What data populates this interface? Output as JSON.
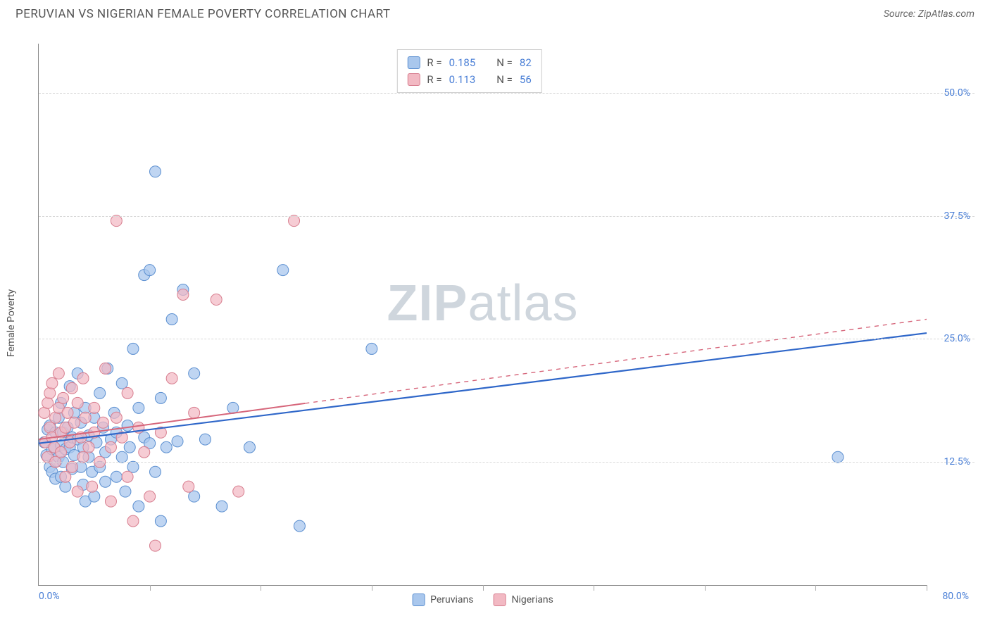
{
  "header": {
    "title": "PERUVIAN VS NIGERIAN FEMALE POVERTY CORRELATION CHART",
    "source": "Source: ZipAtlas.com"
  },
  "axes": {
    "ylabel": "Female Poverty",
    "x_origin_label": "0.0%",
    "x_max_label": "80.0%",
    "xlim": [
      0,
      80
    ],
    "ylim": [
      0,
      55
    ],
    "y_gridlines": [
      {
        "value": 12.5,
        "label": "12.5%"
      },
      {
        "value": 25.0,
        "label": "25.0%"
      },
      {
        "value": 37.5,
        "label": "37.5%"
      },
      {
        "value": 50.0,
        "label": "50.0%"
      }
    ],
    "x_ticks": [
      10,
      20,
      30,
      40,
      50,
      60,
      70,
      80
    ],
    "grid_color": "#d8d8d8",
    "axis_color": "#888888",
    "tick_label_color": "#4a7fd6"
  },
  "watermark": {
    "text_bold": "ZIP",
    "text_light": "atlas",
    "color": "#cfd6dd"
  },
  "series": [
    {
      "name": "Peruvians",
      "fill_color": "#a9c7ed",
      "stroke_color": "#5b8fd0",
      "marker_radius": 8,
      "marker_opacity": 0.75,
      "trend": {
        "x0": 0,
        "y0": 14.4,
        "x1": 80,
        "y1": 25.6,
        "color": "#2f67c9",
        "width": 2.2,
        "solid_until_x": 80
      },
      "R": 0.185,
      "N": 82,
      "points": [
        [
          0.5,
          14.5
        ],
        [
          0.7,
          13.2
        ],
        [
          0.8,
          15.8
        ],
        [
          1.0,
          12.0
        ],
        [
          1.0,
          16.2
        ],
        [
          1.2,
          13.8
        ],
        [
          1.2,
          11.5
        ],
        [
          1.4,
          14.0
        ],
        [
          1.5,
          10.8
        ],
        [
          1.5,
          15.5
        ],
        [
          1.6,
          12.6
        ],
        [
          1.8,
          13.0
        ],
        [
          1.8,
          17.0
        ],
        [
          2.0,
          14.2
        ],
        [
          2.0,
          11.0
        ],
        [
          2.0,
          18.5
        ],
        [
          2.2,
          15.5
        ],
        [
          2.2,
          12.5
        ],
        [
          2.4,
          10.0
        ],
        [
          2.4,
          13.8
        ],
        [
          2.6,
          16.0
        ],
        [
          2.8,
          14.0
        ],
        [
          2.8,
          20.2
        ],
        [
          3.0,
          11.8
        ],
        [
          3.0,
          15.0
        ],
        [
          3.2,
          17.5
        ],
        [
          3.2,
          13.2
        ],
        [
          3.5,
          14.8
        ],
        [
          3.5,
          21.5
        ],
        [
          3.8,
          12.0
        ],
        [
          3.8,
          16.5
        ],
        [
          4.0,
          14.0
        ],
        [
          4.0,
          10.2
        ],
        [
          4.2,
          18.0
        ],
        [
          4.2,
          8.5
        ],
        [
          4.5,
          15.2
        ],
        [
          4.5,
          13.0
        ],
        [
          4.8,
          11.5
        ],
        [
          5.0,
          17.0
        ],
        [
          5.0,
          9.0
        ],
        [
          5.2,
          14.5
        ],
        [
          5.5,
          19.5
        ],
        [
          5.5,
          12.0
        ],
        [
          5.8,
          16.0
        ],
        [
          6.0,
          13.5
        ],
        [
          6.0,
          10.5
        ],
        [
          6.2,
          22.0
        ],
        [
          6.5,
          14.8
        ],
        [
          6.8,
          17.5
        ],
        [
          7.0,
          15.5
        ],
        [
          7.0,
          11.0
        ],
        [
          7.5,
          13.0
        ],
        [
          7.5,
          20.5
        ],
        [
          7.8,
          9.5
        ],
        [
          8.0,
          16.2
        ],
        [
          8.2,
          14.0
        ],
        [
          8.5,
          24.0
        ],
        [
          8.5,
          12.0
        ],
        [
          9.0,
          18.0
        ],
        [
          9.0,
          8.0
        ],
        [
          9.5,
          15.0
        ],
        [
          9.5,
          31.5
        ],
        [
          10.0,
          14.4
        ],
        [
          10.0,
          32.0
        ],
        [
          10.5,
          42.0
        ],
        [
          10.5,
          11.5
        ],
        [
          11.0,
          19.0
        ],
        [
          11.0,
          6.5
        ],
        [
          11.5,
          14.0
        ],
        [
          12.0,
          27.0
        ],
        [
          12.5,
          14.6
        ],
        [
          13.0,
          30.0
        ],
        [
          14.0,
          21.5
        ],
        [
          14.0,
          9.0
        ],
        [
          15.0,
          14.8
        ],
        [
          16.5,
          8.0
        ],
        [
          17.5,
          18.0
        ],
        [
          19.0,
          14.0
        ],
        [
          22.0,
          32.0
        ],
        [
          23.5,
          6.0
        ],
        [
          30.0,
          24.0
        ],
        [
          72.0,
          13.0
        ]
      ]
    },
    {
      "name": "Nigerians",
      "fill_color": "#f2b9c3",
      "stroke_color": "#d77d8e",
      "marker_radius": 8,
      "marker_opacity": 0.72,
      "trend": {
        "x0": 0,
        "y0": 14.8,
        "x1": 80,
        "y1": 27.0,
        "color": "#d6657a",
        "width": 2.0,
        "solid_until_x": 24
      },
      "R": 0.113,
      "N": 56,
      "points": [
        [
          0.5,
          17.5
        ],
        [
          0.6,
          14.5
        ],
        [
          0.8,
          18.5
        ],
        [
          0.8,
          13.0
        ],
        [
          1.0,
          16.0
        ],
        [
          1.0,
          19.5
        ],
        [
          1.2,
          15.0
        ],
        [
          1.2,
          20.5
        ],
        [
          1.4,
          14.0
        ],
        [
          1.5,
          17.0
        ],
        [
          1.5,
          12.5
        ],
        [
          1.8,
          18.0
        ],
        [
          1.8,
          21.5
        ],
        [
          2.0,
          15.5
        ],
        [
          2.0,
          13.5
        ],
        [
          2.2,
          19.0
        ],
        [
          2.4,
          16.0
        ],
        [
          2.4,
          11.0
        ],
        [
          2.6,
          17.5
        ],
        [
          2.8,
          14.5
        ],
        [
          3.0,
          20.0
        ],
        [
          3.0,
          12.0
        ],
        [
          3.2,
          16.5
        ],
        [
          3.5,
          18.5
        ],
        [
          3.5,
          9.5
        ],
        [
          3.8,
          15.0
        ],
        [
          4.0,
          21.0
        ],
        [
          4.0,
          13.0
        ],
        [
          4.2,
          17.0
        ],
        [
          4.5,
          14.0
        ],
        [
          4.8,
          10.0
        ],
        [
          5.0,
          18.0
        ],
        [
          5.0,
          15.5
        ],
        [
          5.5,
          12.5
        ],
        [
          5.8,
          16.5
        ],
        [
          6.0,
          22.0
        ],
        [
          6.5,
          14.0
        ],
        [
          6.5,
          8.5
        ],
        [
          7.0,
          37.0
        ],
        [
          7.0,
          17.0
        ],
        [
          7.5,
          15.0
        ],
        [
          8.0,
          11.0
        ],
        [
          8.0,
          19.5
        ],
        [
          8.5,
          6.5
        ],
        [
          9.0,
          16.0
        ],
        [
          9.5,
          13.5
        ],
        [
          10.0,
          9.0
        ],
        [
          10.5,
          4.0
        ],
        [
          11.0,
          15.5
        ],
        [
          12.0,
          21.0
        ],
        [
          13.0,
          29.5
        ],
        [
          13.5,
          10.0
        ],
        [
          14.0,
          17.5
        ],
        [
          16.0,
          29.0
        ],
        [
          18.0,
          9.5
        ],
        [
          23.0,
          37.0
        ]
      ]
    }
  ],
  "top_legend": {
    "rows": [
      {
        "swatch_fill": "#a9c7ed",
        "swatch_stroke": "#5b8fd0",
        "R_label": "R =",
        "R": "0.185",
        "N_label": "N =",
        "N": "82"
      },
      {
        "swatch_fill": "#f2b9c3",
        "swatch_stroke": "#d77d8e",
        "R_label": "R =",
        "R": "0.113",
        "N_label": "N =",
        "N": "56"
      }
    ]
  },
  "bottom_legend": {
    "items": [
      {
        "swatch_fill": "#a9c7ed",
        "swatch_stroke": "#5b8fd0",
        "label": "Peruvians"
      },
      {
        "swatch_fill": "#f2b9c3",
        "swatch_stroke": "#d77d8e",
        "label": "Nigerians"
      }
    ]
  }
}
